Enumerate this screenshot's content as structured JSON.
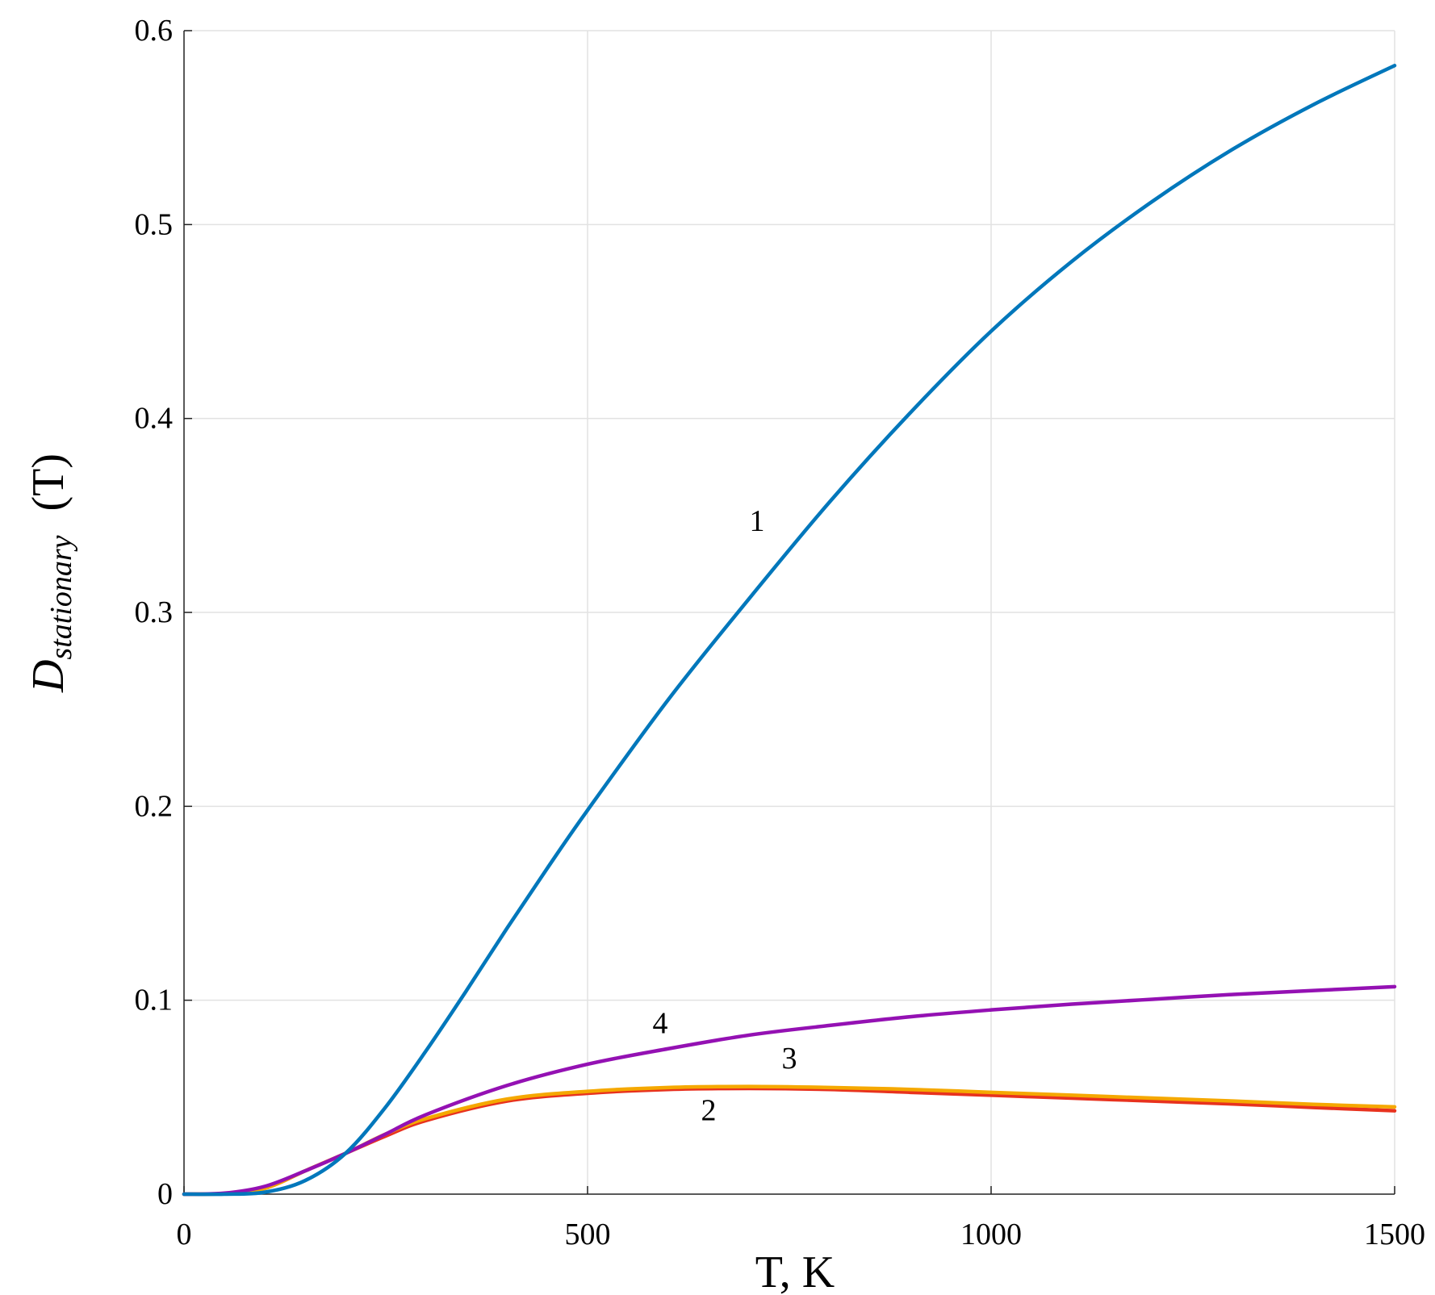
{
  "chart_data": {
    "type": "line",
    "xlabel": "T, K",
    "ylabel": {
      "main": "D",
      "subscript": "stationary",
      "suffix": "(T)"
    },
    "xlim": [
      0,
      1500
    ],
    "ylim": [
      0,
      0.6
    ],
    "x_ticks": [
      0,
      500,
      1000,
      1500
    ],
    "x_tick_labels": [
      "0",
      "500",
      "1000",
      "1500"
    ],
    "y_ticks": [
      0,
      0.1,
      0.2,
      0.3,
      0.4,
      0.5,
      0.6
    ],
    "y_tick_labels": [
      "0",
      "0.1",
      "0.2",
      "0.3",
      "0.4",
      "0.5",
      "0.6"
    ],
    "grid": true,
    "series": [
      {
        "name": "1",
        "color": "#0077bb",
        "x": [
          0,
          50,
          100,
          150,
          200,
          250,
          300,
          350,
          400,
          450,
          500,
          600,
          700,
          800,
          900,
          1000,
          1100,
          1200,
          1300,
          1400,
          1500
        ],
        "y": [
          0,
          0,
          0.001,
          0.007,
          0.021,
          0.045,
          0.074,
          0.105,
          0.137,
          0.168,
          0.198,
          0.255,
          0.307,
          0.357,
          0.403,
          0.445,
          0.481,
          0.512,
          0.539,
          0.562,
          0.582
        ]
      },
      {
        "name": "2",
        "color": "#e8321e",
        "x": [
          0,
          50,
          100,
          150,
          200,
          250,
          300,
          400,
          500,
          600,
          700,
          800,
          900,
          1000,
          1100,
          1200,
          1300,
          1400,
          1500
        ],
        "y": [
          0,
          0.0003,
          0.003,
          0.012,
          0.021,
          0.03,
          0.038,
          0.048,
          0.052,
          0.054,
          0.0545,
          0.054,
          0.0525,
          0.051,
          0.0495,
          0.048,
          0.0465,
          0.0447,
          0.043
        ]
      },
      {
        "name": "3",
        "color": "#f5a800",
        "x": [
          0,
          50,
          100,
          150,
          200,
          250,
          300,
          400,
          500,
          600,
          700,
          800,
          900,
          1000,
          1100,
          1200,
          1300,
          1400,
          1500
        ],
        "y": [
          0,
          0.0003,
          0.003,
          0.012,
          0.021,
          0.031,
          0.039,
          0.049,
          0.053,
          0.055,
          0.0555,
          0.055,
          0.054,
          0.0525,
          0.051,
          0.0495,
          0.048,
          0.0463,
          0.045
        ]
      },
      {
        "name": "4",
        "color": "#9411b3",
        "x": [
          0,
          50,
          100,
          150,
          200,
          250,
          300,
          400,
          500,
          600,
          700,
          800,
          900,
          1000,
          1100,
          1200,
          1300,
          1400,
          1500
        ],
        "y": [
          0,
          0.0005,
          0.004,
          0.012,
          0.021,
          0.031,
          0.041,
          0.056,
          0.067,
          0.075,
          0.082,
          0.087,
          0.0915,
          0.095,
          0.098,
          0.1005,
          0.103,
          0.105,
          0.107
        ]
      }
    ],
    "annotations": [
      {
        "text": "1",
        "x": 710,
        "y": 0.342
      },
      {
        "text": "4",
        "x": 590,
        "y": 0.083
      },
      {
        "text": "3",
        "x": 750,
        "y": 0.065
      },
      {
        "text": "2",
        "x": 650,
        "y": 0.038
      }
    ]
  }
}
